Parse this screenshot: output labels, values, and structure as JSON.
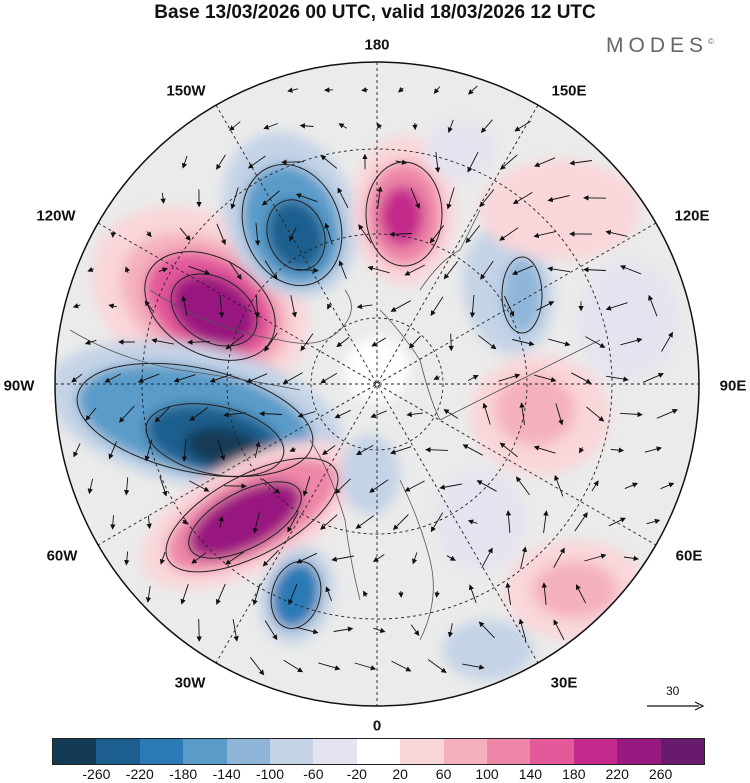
{
  "title": "Base 13/03/2026 00 UTC, valid 18/03/2026 12 UTC",
  "brand": "MODES",
  "brand_mark": "©",
  "longitude_labels": {
    "top": "180",
    "top_left": "150W",
    "top_right": "150E",
    "upper_left": "120W",
    "upper_right": "120E",
    "left": "90W",
    "right": "90E",
    "lower_left": "60W",
    "lower_right": "60E",
    "bottom_left": "30W",
    "bottom_right": "30E",
    "bottom": "0"
  },
  "reference_vector": {
    "label": "30"
  },
  "colorbar": {
    "ticks": [
      "-260",
      "-220",
      "-180",
      "-140",
      "-100",
      "-60",
      "-20",
      "20",
      "60",
      "100",
      "140",
      "180",
      "220",
      "260"
    ],
    "colors": [
      "#143b56",
      "#1c5f8e",
      "#2b7ab6",
      "#5a9bc9",
      "#8fb6d9",
      "#c4d3e6",
      "#e5e3ef",
      "#ffffff",
      "#f9d6d9",
      "#f4b0bd",
      "#ee86a7",
      "#e3599a",
      "#c42a8c",
      "#98197f",
      "#671a6e"
    ]
  },
  "anomaly_centers": [
    {
      "sign": "positive",
      "value": 260,
      "longitude": "150W-120W"
    },
    {
      "sign": "negative",
      "value": -200,
      "longitude": "150W-180"
    },
    {
      "sign": "positive",
      "value": 200,
      "longitude": "180"
    },
    {
      "sign": "negative",
      "value": -260,
      "longitude": "90W-60W"
    },
    {
      "sign": "positive",
      "value": 240,
      "longitude": "60W-30W"
    },
    {
      "sign": "negative",
      "value": -160,
      "longitude": "30W"
    },
    {
      "sign": "negative",
      "value": -100,
      "longitude": "150E-120E"
    },
    {
      "sign": "positive",
      "value": 80,
      "longitude": "90E"
    },
    {
      "sign": "positive",
      "value": 80,
      "longitude": "60E"
    }
  ]
}
